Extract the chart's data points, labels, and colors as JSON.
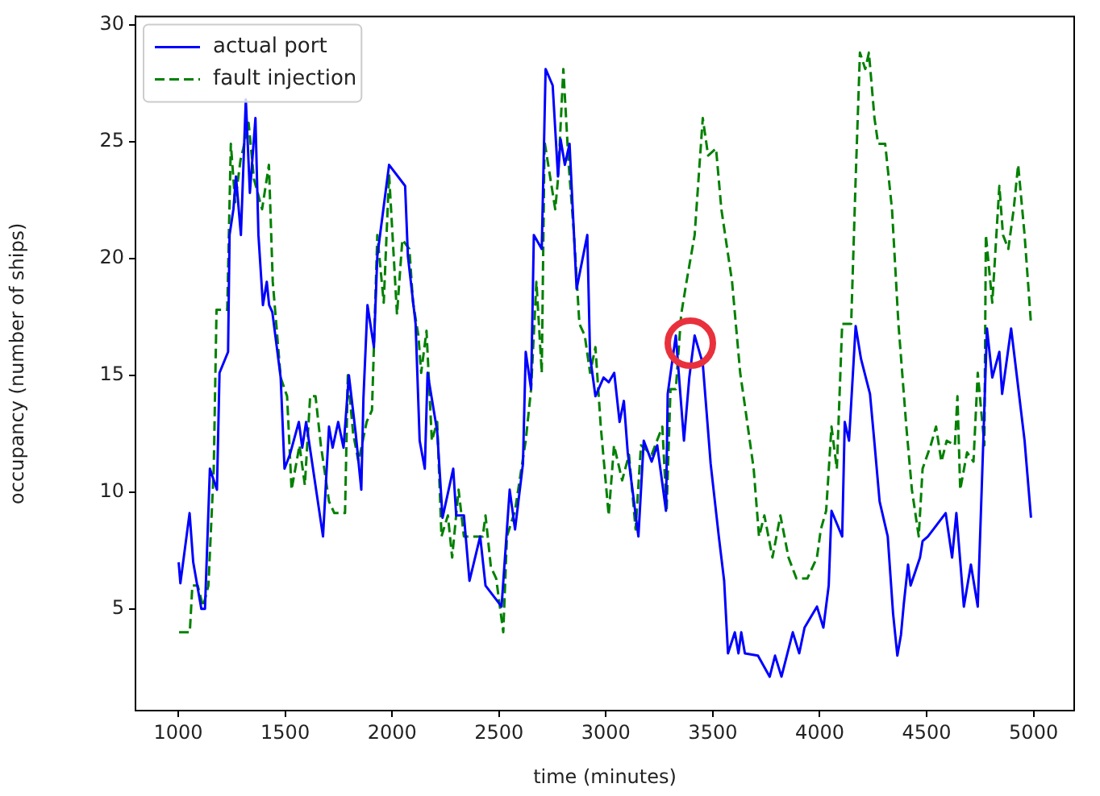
{
  "chart_data": {
    "type": "line",
    "xlabel": "time (minutes)",
    "ylabel": "occupancy (number of ships)",
    "xlim": [
      800,
      5190
    ],
    "ylim": [
      0.65,
      30.35
    ],
    "xticks": [
      1000,
      1500,
      2000,
      2500,
      3000,
      3500,
      4000,
      4500,
      5000
    ],
    "yticks": [
      5,
      10,
      15,
      20,
      25,
      30
    ],
    "grid": false,
    "legend": "top left",
    "marker": "none",
    "series": [
      {
        "name": "actual port",
        "color": "#0000ff",
        "line_style": "solid",
        "x": [
          1002,
          1010,
          1053,
          1070,
          1108,
          1125,
          1148,
          1181,
          1193,
          1233,
          1240,
          1258,
          1270,
          1293,
          1316,
          1335,
          1361,
          1375,
          1396,
          1414,
          1425,
          1440,
          1479,
          1497,
          1522,
          1564,
          1580,
          1598,
          1677,
          1705,
          1722,
          1748,
          1773,
          1798,
          1830,
          1856,
          1866,
          1885,
          1915,
          1931,
          1986,
          2061,
          2074,
          2110,
          2129,
          2153,
          2166,
          2211,
          2236,
          2286,
          2300,
          2336,
          2362,
          2412,
          2437,
          2512,
          2550,
          2575,
          2612,
          2625,
          2650,
          2663,
          2700,
          2718,
          2751,
          2776,
          2788,
          2808,
          2830,
          2863,
          2913,
          2926,
          2951,
          2989,
          3013,
          3039,
          3064,
          3084,
          3102,
          3152,
          3177,
          3214,
          3240,
          3281,
          3289,
          3327,
          3365,
          3390,
          3415,
          3453,
          3490,
          3528,
          3553,
          3571,
          3603,
          3620,
          3633,
          3650,
          3711,
          3766,
          3791,
          3821,
          3874,
          3904,
          3929,
          3987,
          4017,
          4042,
          4055,
          4105,
          4117,
          4137,
          4168,
          4193,
          4235,
          4256,
          4280,
          4318,
          4343,
          4363,
          4380,
          4393,
          4413,
          4425,
          4469,
          4481,
          4506,
          4589,
          4619,
          4639,
          4674,
          4707,
          4739,
          4765,
          4782,
          4807,
          4840,
          4853,
          4895,
          4920,
          4958,
          4988
        ],
        "values": [
          7,
          6.1,
          9.1,
          7,
          5,
          5,
          11,
          10.1,
          15.1,
          16,
          21,
          22.1,
          23.5,
          21,
          26.8,
          22.8,
          26,
          21,
          18,
          19,
          18,
          17.7,
          14.9,
          11,
          11.6,
          13,
          11.9,
          13,
          8.1,
          12.8,
          11.9,
          13,
          11.9,
          15,
          12.5,
          10.1,
          14,
          18,
          16.2,
          20.1,
          24,
          23.1,
          20.1,
          17.2,
          12.2,
          11,
          15.1,
          12.6,
          8.9,
          11,
          9,
          9,
          6.2,
          8.1,
          6,
          5.1,
          10.1,
          8.4,
          11.2,
          16,
          14.4,
          21,
          20.4,
          28.1,
          27.4,
          23.5,
          25.1,
          24,
          24.9,
          18.7,
          21,
          15.8,
          14.1,
          14.9,
          14.7,
          15.1,
          13,
          13.9,
          11.7,
          8.1,
          12.2,
          11.3,
          12,
          9.2,
          14.2,
          16.7,
          12.2,
          14.9,
          16.7,
          15.5,
          11.2,
          8.1,
          6.2,
          3.1,
          4,
          3.1,
          4,
          3.1,
          3,
          2.1,
          3,
          2.1,
          4,
          3.1,
          4.2,
          5.1,
          4.2,
          6,
          9.2,
          8.1,
          13,
          12.2,
          17.1,
          15.7,
          14.2,
          12.1,
          9.6,
          8.1,
          4.8,
          3,
          3.9,
          5.2,
          6.9,
          6,
          7.2,
          7.9,
          8.1,
          9.1,
          7.2,
          9.1,
          5.1,
          6.9,
          5.1,
          12.2,
          17,
          14.9,
          16,
          14.2,
          17,
          15.1,
          12.2,
          8.9
        ]
      },
      {
        "name": "fault injection",
        "color": "#008000",
        "line_style": "dashed",
        "x": [
          1004,
          1054,
          1066,
          1091,
          1116,
          1141,
          1166,
          1179,
          1229,
          1246,
          1266,
          1291,
          1304,
          1329,
          1354,
          1392,
          1424,
          1442,
          1479,
          1509,
          1530,
          1567,
          1592,
          1617,
          1642,
          1667,
          1705,
          1730,
          1780,
          1793,
          1818,
          1843,
          1881,
          1906,
          1931,
          1961,
          1986,
          2023,
          2048,
          2081,
          2098,
          2123,
          2136,
          2161,
          2186,
          2211,
          2231,
          2261,
          2281,
          2311,
          2336,
          2362,
          2424,
          2437,
          2462,
          2487,
          2520,
          2537,
          2575,
          2608,
          2625,
          2650,
          2675,
          2700,
          2713,
          2763,
          2776,
          2801,
          2826,
          2851,
          2876,
          2901,
          2926,
          2951,
          2976,
          3013,
          3038,
          3076,
          3108,
          3139,
          3164,
          3214,
          3264,
          3284,
          3302,
          3327,
          3352,
          3377,
          3415,
          3453,
          3478,
          3515,
          3540,
          3590,
          3628,
          3653,
          3691,
          3716,
          3741,
          3779,
          3816,
          3854,
          3891,
          3942,
          3987,
          4005,
          4030,
          4055,
          4080,
          4105,
          4147,
          4168,
          4188,
          4213,
          4230,
          4256,
          4273,
          4306,
          4338,
          4368,
          4405,
          4431,
          4463,
          4481,
          4519,
          4544,
          4569,
          4594,
          4632,
          4644,
          4657,
          4689,
          4719,
          4739,
          4770,
          4777,
          4807,
          4840,
          4857,
          4882,
          4907,
          4928,
          4958,
          4988
        ],
        "values": [
          4,
          4,
          6,
          6,
          5.1,
          6,
          11,
          17.8,
          17.8,
          24.9,
          22.4,
          24.2,
          24.7,
          25.8,
          23.4,
          22.1,
          24,
          19,
          14.9,
          14.1,
          10.1,
          12,
          10.3,
          14.1,
          14.1,
          12,
          9.6,
          9.1,
          9.1,
          15,
          12.5,
          11.3,
          13,
          13.5,
          21,
          18.1,
          23.6,
          17.6,
          20.8,
          20.4,
          18.1,
          16.7,
          15.1,
          16.9,
          12.2,
          13,
          8.1,
          9,
          7.2,
          10.1,
          8.1,
          8.1,
          8.1,
          9,
          6.8,
          6.3,
          4,
          8.1,
          9.2,
          11.2,
          12.2,
          14.4,
          19,
          15.1,
          25,
          22.1,
          23.4,
          28.1,
          24,
          21,
          17.2,
          16.7,
          15.1,
          16.2,
          12.8,
          9,
          12,
          10.5,
          11.6,
          8.4,
          12,
          11.6,
          12.8,
          9.2,
          14.4,
          14.4,
          17.6,
          19,
          21,
          26,
          24.4,
          24.7,
          22.1,
          19,
          15.1,
          13.5,
          11,
          8.1,
          9,
          7.2,
          9,
          7.2,
          6.3,
          6.3,
          7.2,
          8.4,
          9.2,
          12.8,
          11,
          17.2,
          17.2,
          23.4,
          28.8,
          28.1,
          28.8,
          26,
          24.9,
          24.9,
          22.1,
          17.2,
          12.8,
          10.1,
          8.1,
          11,
          12,
          12.8,
          11.3,
          12.2,
          12,
          14.1,
          10.1,
          11.7,
          11.3,
          15.1,
          12,
          21,
          18.1,
          23.1,
          21,
          20.4,
          22.1,
          24,
          21,
          17.2
        ]
      }
    ]
  }
}
